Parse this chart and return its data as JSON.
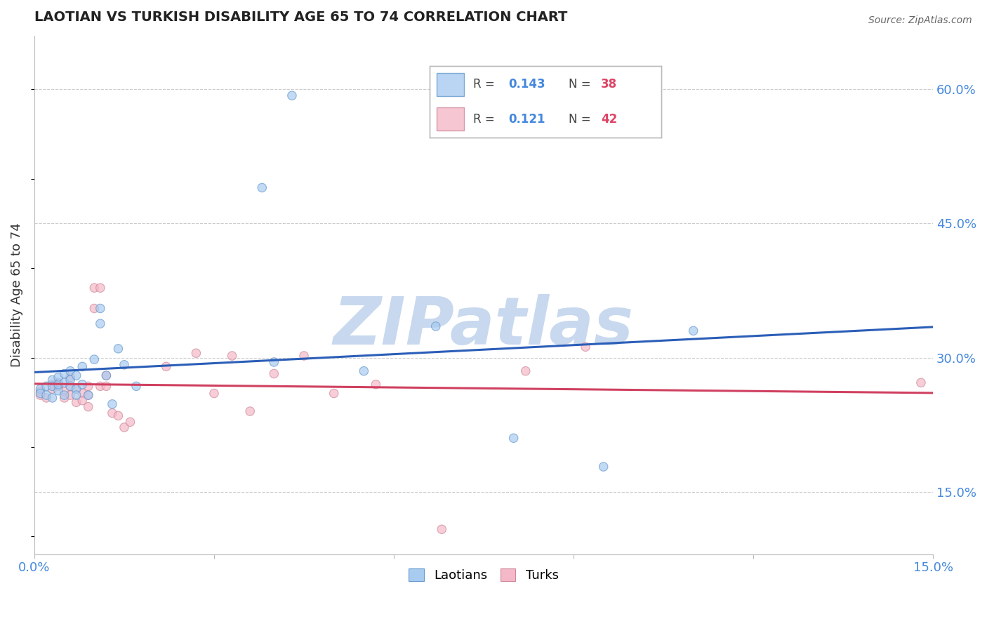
{
  "title": "LAOTIAN VS TURKISH DISABILITY AGE 65 TO 74 CORRELATION CHART",
  "source": "Source: ZipAtlas.com",
  "ylabel": "Disability Age 65 to 74",
  "xlim": [
    0.0,
    0.15
  ],
  "ylim": [
    0.08,
    0.66
  ],
  "xticks": [
    0.0,
    0.03,
    0.06,
    0.09,
    0.12,
    0.15
  ],
  "xticklabels": [
    "0.0%",
    "",
    "",
    "",
    "",
    "15.0%"
  ],
  "yticks_right": [
    0.6,
    0.45,
    0.3,
    0.15
  ],
  "ytick_right_labels": [
    "60.0%",
    "45.0%",
    "30.0%",
    "15.0%"
  ],
  "laotian_R": 0.143,
  "laotian_N": 38,
  "turkish_R": 0.121,
  "turkish_N": 42,
  "blue_color": "#A8CBF0",
  "blue_edge_color": "#6699CC",
  "pink_color": "#F5B8C8",
  "pink_edge_color": "#CC8899",
  "blue_line_color": "#2B5EB8",
  "pink_line_color": "#D04060",
  "tick_label_color": "#4488DD",
  "legend_R_color": "#4488DD",
  "legend_N_color": "#DD4466",
  "laotian_x": [
    0.001,
    0.001,
    0.002,
    0.002,
    0.003,
    0.003,
    0.003,
    0.004,
    0.004,
    0.004,
    0.005,
    0.005,
    0.005,
    0.006,
    0.006,
    0.006,
    0.007,
    0.007,
    0.007,
    0.008,
    0.008,
    0.009,
    0.01,
    0.011,
    0.011,
    0.012,
    0.013,
    0.014,
    0.015,
    0.017,
    0.038,
    0.04,
    0.043,
    0.055,
    0.067,
    0.08,
    0.095,
    0.11
  ],
  "laotian_y": [
    0.265,
    0.26,
    0.268,
    0.258,
    0.275,
    0.268,
    0.255,
    0.278,
    0.263,
    0.27,
    0.282,
    0.272,
    0.258,
    0.285,
    0.268,
    0.275,
    0.265,
    0.28,
    0.258,
    0.29,
    0.27,
    0.258,
    0.298,
    0.355,
    0.338,
    0.28,
    0.248,
    0.31,
    0.292,
    0.268,
    0.49,
    0.295,
    0.593,
    0.285,
    0.335,
    0.21,
    0.178,
    0.33
  ],
  "laotian_sizes": [
    80,
    80,
    80,
    80,
    80,
    80,
    80,
    80,
    80,
    80,
    80,
    80,
    80,
    80,
    80,
    80,
    80,
    80,
    80,
    80,
    80,
    80,
    80,
    80,
    80,
    80,
    80,
    80,
    80,
    80,
    80,
    80,
    80,
    80,
    80,
    80,
    80,
    80
  ],
  "turkish_x": [
    0.001,
    0.001,
    0.002,
    0.003,
    0.003,
    0.004,
    0.004,
    0.005,
    0.005,
    0.006,
    0.006,
    0.006,
    0.007,
    0.007,
    0.008,
    0.008,
    0.009,
    0.009,
    0.009,
    0.01,
    0.01,
    0.011,
    0.011,
    0.012,
    0.012,
    0.013,
    0.014,
    0.015,
    0.016,
    0.022,
    0.027,
    0.03,
    0.033,
    0.036,
    0.04,
    0.045,
    0.05,
    0.057,
    0.068,
    0.082,
    0.092,
    0.148
  ],
  "turkish_y": [
    0.262,
    0.258,
    0.255,
    0.27,
    0.265,
    0.272,
    0.268,
    0.262,
    0.255,
    0.268,
    0.258,
    0.278,
    0.25,
    0.265,
    0.26,
    0.252,
    0.258,
    0.268,
    0.245,
    0.355,
    0.378,
    0.268,
    0.378,
    0.268,
    0.28,
    0.238,
    0.235,
    0.222,
    0.228,
    0.29,
    0.305,
    0.26,
    0.302,
    0.24,
    0.282,
    0.302,
    0.26,
    0.27,
    0.108,
    0.285,
    0.312,
    0.272
  ],
  "turkish_sizes": [
    80,
    80,
    80,
    80,
    80,
    80,
    80,
    80,
    80,
    80,
    80,
    80,
    80,
    80,
    80,
    80,
    80,
    80,
    80,
    80,
    80,
    80,
    80,
    80,
    80,
    80,
    80,
    80,
    80,
    80,
    80,
    80,
    80,
    80,
    80,
    80,
    80,
    80,
    80,
    80,
    80,
    80
  ],
  "watermark": "ZIPatlas",
  "watermark_color": "#C8D8EE",
  "grid_color": "#CCCCCC",
  "background_color": "#FFFFFF"
}
